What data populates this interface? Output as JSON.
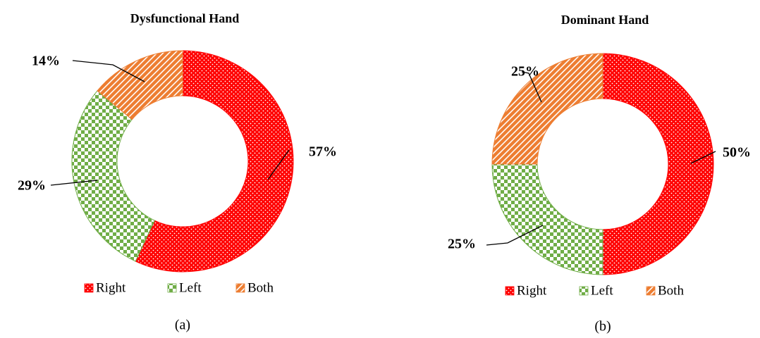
{
  "chart_data": [
    {
      "type": "donut",
      "title": "Dysfunctional Hand",
      "caption": "(a)",
      "categories": [
        "Right",
        "Left",
        "Both"
      ],
      "values": [
        57,
        29,
        14
      ],
      "value_labels": [
        "57%",
        "29%",
        "14%"
      ],
      "colors": [
        "#ff0000",
        "#70ad47",
        "#ed7d31"
      ],
      "patterns": [
        "dots",
        "checks",
        "stripes"
      ]
    },
    {
      "type": "donut",
      "title": "Dominant Hand",
      "caption": "(b)",
      "categories": [
        "Right",
        "Left",
        "Both"
      ],
      "values": [
        50,
        25,
        25
      ],
      "value_labels": [
        "50%",
        "25%",
        "25%"
      ],
      "colors": [
        "#ff0000",
        "#70ad47",
        "#ed7d31"
      ],
      "patterns": [
        "dots",
        "checks",
        "stripes"
      ]
    }
  ]
}
